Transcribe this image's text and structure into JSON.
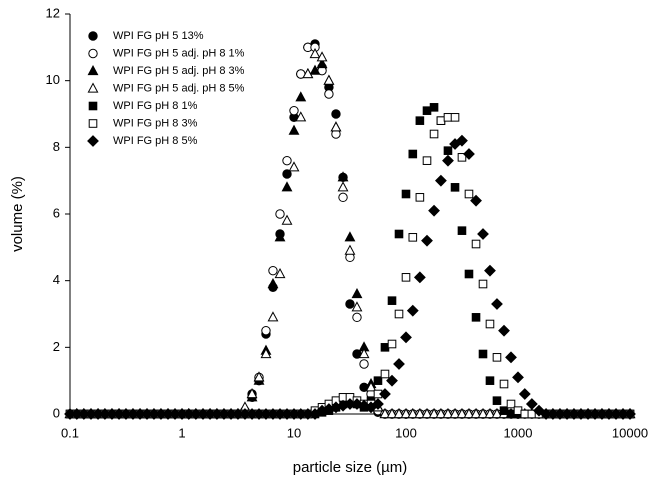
{
  "chart_data": {
    "type": "scatter",
    "xscale": "log",
    "xlabel": "particle size (µm)",
    "ylabel": "volume (%)",
    "xlim": [
      0.1,
      10000
    ],
    "xticks": [
      0.1,
      1,
      10,
      100,
      1000,
      10000
    ],
    "ylim": [
      0,
      12
    ],
    "yticks": [
      0,
      2,
      4,
      6,
      8,
      10,
      12
    ],
    "legend": "top-left",
    "x": [
      0.1,
      0.115,
      0.133,
      0.154,
      0.178,
      0.205,
      0.237,
      0.274,
      0.316,
      0.365,
      0.422,
      0.487,
      0.562,
      0.649,
      0.75,
      0.866,
      1,
      1.15,
      1.33,
      1.54,
      1.78,
      2.05,
      2.37,
      2.74,
      3.16,
      3.65,
      4.22,
      4.87,
      5.62,
      6.49,
      7.5,
      8.66,
      10,
      11.5,
      13.3,
      15.4,
      17.8,
      20.5,
      23.7,
      27.4,
      31.6,
      36.5,
      42.2,
      48.7,
      56.2,
      64.9,
      75,
      86.6,
      100,
      115,
      133,
      154,
      178,
      205,
      237,
      274,
      316,
      365,
      422,
      487,
      562,
      649,
      750,
      866,
      1000,
      1150,
      1330,
      1540,
      1780,
      2050,
      2370,
      2740,
      3160,
      3650,
      4220,
      4870,
      5620,
      6490,
      7500,
      8660,
      10000
    ],
    "series": [
      {
        "name": "WPI FG pH 5 13%",
        "color": "#000000",
        "marker": "circle",
        "filled": true,
        "values": [
          0,
          0,
          0,
          0,
          0,
          0,
          0,
          0,
          0,
          0,
          0,
          0,
          0,
          0,
          0,
          0,
          0,
          0,
          0,
          0,
          0,
          0,
          0,
          0,
          0,
          0.1,
          0.6,
          1.0,
          2.4,
          3.8,
          5.4,
          7.2,
          8.9,
          10.2,
          11.0,
          11.1,
          10.4,
          9.8,
          9.0,
          7.1,
          3.3,
          1.8,
          0.8,
          0.3,
          0.05,
          0,
          0,
          0,
          0,
          0,
          0,
          0,
          0,
          0,
          0,
          0,
          0,
          0,
          0,
          0,
          0,
          0,
          0,
          0,
          0,
          0,
          0,
          0,
          0,
          0,
          0,
          0,
          0,
          0,
          0,
          0,
          0,
          0,
          0,
          0,
          0
        ]
      },
      {
        "name": "WPI FG pH 5 adj. pH 8 1%",
        "color": "#000000",
        "marker": "circle",
        "filled": false,
        "values": [
          0,
          0,
          0,
          0,
          0,
          0,
          0,
          0,
          0,
          0,
          0,
          0,
          0,
          0,
          0,
          0,
          0,
          0,
          0,
          0,
          0,
          0,
          0,
          0,
          0,
          0,
          0.5,
          1.1,
          2.5,
          4.3,
          6.0,
          7.6,
          9.1,
          10.2,
          11.0,
          11.0,
          10.3,
          9.6,
          8.4,
          6.5,
          4.7,
          2.9,
          1.5,
          0.6,
          0.1,
          0,
          0,
          0,
          0,
          0,
          0,
          0,
          0,
          0,
          0,
          0,
          0,
          0,
          0,
          0,
          0,
          0,
          0,
          0,
          0,
          0,
          0,
          0,
          0,
          0,
          0,
          0,
          0,
          0,
          0,
          0,
          0,
          0,
          0,
          0,
          0
        ]
      },
      {
        "name": "WPI FG pH 5 adj. pH 8 3%",
        "color": "#000000",
        "marker": "triangle",
        "filled": true,
        "values": [
          0,
          0,
          0,
          0,
          0,
          0,
          0,
          0,
          0,
          0,
          0,
          0,
          0,
          0,
          0,
          0,
          0,
          0,
          0,
          0,
          0,
          0,
          0,
          0,
          0,
          0.1,
          0.5,
          1.0,
          1.9,
          3.9,
          5.3,
          6.8,
          8.5,
          9.5,
          10.2,
          10.3,
          10.5,
          10.0,
          8.6,
          7.1,
          5.3,
          3.6,
          2.0,
          0.9,
          0.2,
          0,
          0,
          0,
          0,
          0,
          0,
          0,
          0,
          0,
          0,
          0,
          0,
          0,
          0,
          0,
          0,
          0,
          0,
          0,
          0,
          0,
          0,
          0,
          0,
          0,
          0,
          0,
          0,
          0,
          0,
          0,
          0,
          0,
          0,
          0,
          0
        ]
      },
      {
        "name": "WPI FG pH 5 adj. pH 8 5%",
        "color": "#000000",
        "marker": "triangle",
        "filled": false,
        "values": [
          0,
          0,
          0,
          0,
          0,
          0,
          0,
          0,
          0,
          0,
          0,
          0,
          0,
          0,
          0,
          0,
          0,
          0,
          0,
          0,
          0,
          0,
          0,
          0,
          0,
          0.2,
          0.6,
          1.1,
          1.8,
          2.9,
          4.2,
          5.8,
          7.4,
          8.9,
          10.2,
          10.8,
          10.7,
          10.0,
          8.6,
          6.8,
          4.9,
          3.2,
          1.8,
          0.8,
          0.2,
          0,
          0,
          0,
          0,
          0,
          0,
          0,
          0,
          0,
          0,
          0,
          0,
          0,
          0,
          0,
          0,
          0,
          0,
          0,
          0,
          0,
          0,
          0,
          0,
          0,
          0,
          0,
          0,
          0,
          0,
          0,
          0,
          0,
          0,
          0,
          0
        ]
      },
      {
        "name": "WPI FG pH 8 1%",
        "color": "#000000",
        "marker": "square",
        "filled": true,
        "values": [
          0,
          0,
          0,
          0,
          0,
          0,
          0,
          0,
          0,
          0,
          0,
          0,
          0,
          0,
          0,
          0,
          0,
          0,
          0,
          0,
          0,
          0,
          0,
          0,
          0,
          0,
          0,
          0,
          0,
          0,
          0,
          0,
          0,
          0,
          0,
          0,
          0.05,
          0.1,
          0.2,
          0.3,
          0.35,
          0.3,
          0.2,
          0.4,
          1.0,
          2.0,
          3.4,
          5.4,
          6.6,
          7.8,
          8.8,
          9.1,
          9.2,
          8.8,
          7.9,
          6.8,
          5.5,
          4.2,
          2.9,
          1.8,
          1.0,
          0.4,
          0.1,
          0,
          0,
          0,
          0,
          0,
          0,
          0,
          0,
          0,
          0,
          0,
          0,
          0,
          0,
          0,
          0,
          0,
          0
        ]
      },
      {
        "name": "WPI FG pH 8 3%",
        "color": "#000000",
        "marker": "square",
        "filled": false,
        "values": [
          0,
          0,
          0,
          0,
          0,
          0,
          0,
          0,
          0,
          0,
          0,
          0,
          0,
          0,
          0,
          0,
          0,
          0,
          0,
          0,
          0,
          0,
          0,
          0,
          0,
          0,
          0,
          0,
          0,
          0,
          0,
          0,
          0,
          0,
          0,
          0.1,
          0.2,
          0.3,
          0.4,
          0.5,
          0.5,
          0.4,
          0.3,
          0.3,
          0.6,
          1.2,
          2.1,
          3.0,
          4.1,
          5.3,
          6.5,
          7.6,
          8.4,
          8.8,
          8.9,
          8.9,
          7.7,
          6.6,
          5.1,
          3.9,
          2.7,
          1.7,
          0.9,
          0.3,
          0.1,
          0,
          0,
          0,
          0,
          0,
          0,
          0,
          0,
          0,
          0,
          0,
          0,
          0,
          0,
          0,
          0
        ]
      },
      {
        "name": "WPI FG pH 8 5%",
        "color": "#000000",
        "marker": "diamond",
        "filled": true,
        "values": [
          0,
          0,
          0,
          0,
          0,
          0,
          0,
          0,
          0,
          0,
          0,
          0,
          0,
          0,
          0,
          0,
          0,
          0,
          0,
          0,
          0,
          0,
          0,
          0,
          0,
          0,
          0,
          0,
          0,
          0,
          0,
          0,
          0,
          0,
          0,
          0,
          0.1,
          0.15,
          0.2,
          0.25,
          0.3,
          0.3,
          0.25,
          0.2,
          0.3,
          0.6,
          1.0,
          1.5,
          2.3,
          3.1,
          4.1,
          5.2,
          6.1,
          7.0,
          7.6,
          8.1,
          8.2,
          7.8,
          6.4,
          5.4,
          4.3,
          3.3,
          2.5,
          1.7,
          1.1,
          0.6,
          0.3,
          0.1,
          0,
          0,
          0,
          0,
          0,
          0,
          0,
          0,
          0,
          0,
          0,
          0,
          0
        ]
      }
    ]
  }
}
